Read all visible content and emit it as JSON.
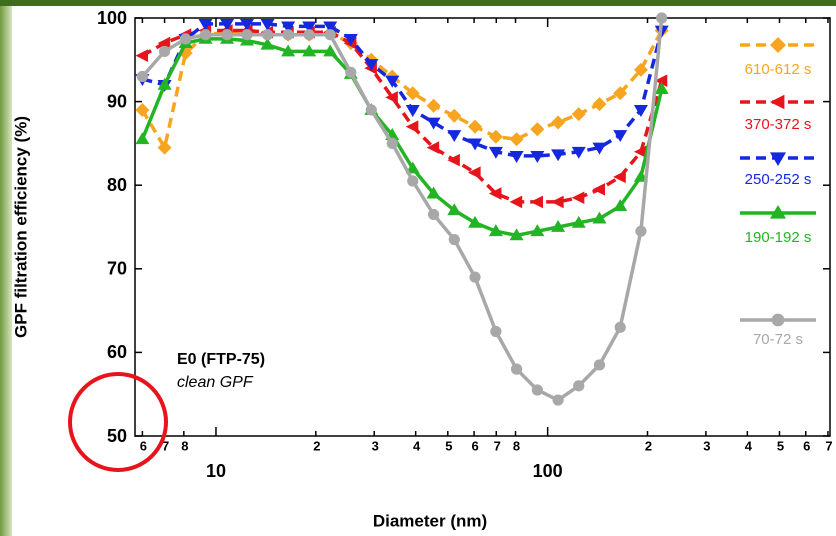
{
  "chart_data": {
    "type": "line",
    "xlabel": "Diameter (nm)",
    "ylabel": "GPF filtration efficiency (%)",
    "annotations": [
      "E0 (FTP-75)",
      "clean GPF"
    ],
    "xscale": "log",
    "xlim": [
      5.7,
      710
    ],
    "ylim": [
      50,
      100
    ],
    "yticks": [
      50,
      60,
      70,
      80,
      90,
      100
    ],
    "xticks": [
      {
        "value": 6,
        "label": "6"
      },
      {
        "value": 7,
        "label": "7"
      },
      {
        "value": 8,
        "label": "8"
      },
      10,
      {
        "value": 20,
        "label": "2"
      },
      {
        "value": 30,
        "label": "3"
      },
      {
        "value": 40,
        "label": "4"
      },
      {
        "value": 50,
        "label": "5"
      },
      {
        "value": 60,
        "label": "6"
      },
      {
        "value": 70,
        "label": "7"
      },
      {
        "value": 80,
        "label": "8"
      },
      100,
      {
        "value": 200,
        "label": "2"
      },
      {
        "value": 300,
        "label": "3"
      },
      {
        "value": 400,
        "label": "4"
      },
      {
        "value": 500,
        "label": "5"
      },
      {
        "value": 600,
        "label": "6"
      },
      {
        "value": 700,
        "label": "7"
      }
    ],
    "x": [
      6.0,
      7.0,
      8.1,
      9.3,
      10.8,
      12.4,
      14.3,
      16.5,
      19.1,
      22.1,
      25.5,
      29.4,
      34.0,
      39.2,
      45.3,
      52.3,
      60.4,
      69.8,
      80.6,
      93.1,
      107.5,
      124.1,
      143.3,
      165.5,
      191.1,
      220.7
    ],
    "series": [
      {
        "name": "610-612 s",
        "color": "#f7a520",
        "marker": "diamond",
        "dashed": true,
        "values": [
          89,
          84.5,
          95.8,
          98,
          98.3,
          98.2,
          98,
          98,
          98,
          98.2,
          97,
          95,
          93,
          91,
          89.5,
          88.3,
          87,
          85.8,
          85.5,
          86.7,
          87.5,
          88.5,
          89.7,
          91,
          93.8,
          98.5
        ]
      },
      {
        "name": "370-372 s",
        "color": "#e8141c",
        "marker": "left",
        "dashed": true,
        "values": [
          95.5,
          97,
          98,
          98.5,
          98.5,
          98.5,
          98.3,
          98.3,
          98.3,
          98.3,
          97,
          94,
          90.5,
          87,
          84.5,
          83,
          81.5,
          79,
          78,
          78,
          78,
          78.5,
          79.5,
          81,
          84,
          92.5
        ]
      },
      {
        "name": "250-252 s",
        "color": "#1428e0",
        "marker": "down",
        "dashed": true,
        "values": [
          92.7,
          92,
          97.5,
          99.3,
          99.3,
          99.3,
          99.3,
          99,
          99,
          99,
          97.5,
          94.5,
          92.5,
          89,
          87.5,
          86,
          85,
          84,
          83.5,
          83.5,
          83.7,
          84,
          84.5,
          86,
          89,
          98.5
        ]
      },
      {
        "name": "190-192 s",
        "color": "#22b422",
        "marker": "up",
        "dashed": false,
        "values": [
          85.5,
          92,
          97,
          97.5,
          97.5,
          97.3,
          96.8,
          96,
          96,
          96,
          93.3,
          89,
          86,
          82,
          79,
          77,
          75.5,
          74.5,
          74,
          74.5,
          75,
          75.5,
          76,
          77.5,
          81,
          91.5
        ]
      },
      {
        "name": "70-72 s",
        "color": "#a8a8a8",
        "marker": "circle",
        "dashed": false,
        "values": [
          93,
          96,
          97.5,
          98,
          98,
          98,
          98,
          98,
          98,
          98,
          93.5,
          89,
          85,
          80.5,
          76.5,
          73.5,
          69,
          62.5,
          58,
          55.5,
          54.3,
          56,
          58.5,
          63,
          74.5,
          100
        ]
      }
    ]
  }
}
